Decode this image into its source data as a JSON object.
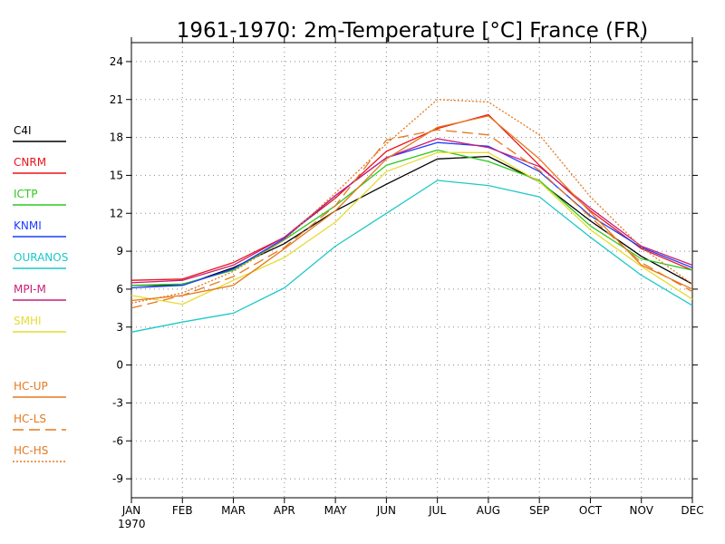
{
  "chart_data": {
    "type": "line",
    "title": "1961-1970: 2m-Temperature [°C] France (FR)",
    "xlabel": "",
    "ylabel": "",
    "categories": [
      "JAN",
      "FEB",
      "MAR",
      "APR",
      "MAY",
      "JUN",
      "JUL",
      "AUG",
      "SEP",
      "OCT",
      "NOV",
      "DEC"
    ],
    "year_label": "1970",
    "ylim": [
      -10.5,
      25.5
    ],
    "yticks": [
      -9,
      -6,
      -3,
      0,
      3,
      6,
      9,
      12,
      15,
      18,
      21,
      24
    ],
    "grid": true,
    "legend_position": "left",
    "series": [
      {
        "name": "C4I",
        "color": "#000000",
        "dash": "solid",
        "values": [
          6.3,
          6.3,
          7.7,
          9.6,
          12.2,
          14.3,
          16.3,
          16.5,
          14.5,
          11.4,
          8.6,
          6.4
        ]
      },
      {
        "name": "CNRM",
        "color": "#e8141c",
        "dash": "solid",
        "values": [
          6.7,
          6.8,
          8.1,
          10.1,
          13.2,
          16.9,
          18.7,
          19.8,
          15.8,
          12.2,
          9.2,
          7.5
        ]
      },
      {
        "name": "ICTP",
        "color": "#2ec81e",
        "dash": "solid",
        "values": [
          6.3,
          6.4,
          7.5,
          9.9,
          12.6,
          15.8,
          17.0,
          16.1,
          14.6,
          11.0,
          8.4,
          7.5
        ]
      },
      {
        "name": "KNMI",
        "color": "#1e3cff",
        "dash": "solid",
        "values": [
          6.1,
          6.3,
          7.6,
          10.0,
          13.4,
          16.4,
          17.6,
          17.3,
          15.3,
          11.8,
          9.3,
          7.7
        ]
      },
      {
        "name": "OURANOS",
        "color": "#1ec8c8",
        "dash": "solid",
        "values": [
          2.6,
          3.4,
          4.1,
          6.1,
          9.4,
          12.0,
          14.6,
          14.2,
          13.3,
          10.1,
          7.1,
          4.7
        ]
      },
      {
        "name": "MPI-M",
        "color": "#c81e78",
        "dash": "solid",
        "values": [
          6.5,
          6.7,
          7.9,
          10.1,
          13.4,
          16.4,
          17.9,
          17.2,
          15.7,
          12.4,
          9.4,
          7.9
        ]
      },
      {
        "name": "SMHI",
        "color": "#e6dc32",
        "dash": "solid",
        "values": [
          5.5,
          4.8,
          6.7,
          8.5,
          11.3,
          15.3,
          16.8,
          16.8,
          14.5,
          10.7,
          7.8,
          5.2
        ]
      },
      {
        "name": "HC-UP",
        "color": "#e6781e",
        "dash": "solid",
        "values": [
          5.1,
          5.5,
          6.3,
          9.2,
          12.2,
          16.3,
          18.8,
          19.7,
          16.3,
          12.1,
          7.9,
          6.0
        ]
      },
      {
        "name": "HC-LS",
        "color": "#e6781e",
        "dash": "dashed",
        "values": [
          4.5,
          5.5,
          7.0,
          9.3,
          12.6,
          17.8,
          18.6,
          18.2,
          15.4,
          11.7,
          8.1,
          5.8
        ]
      },
      {
        "name": "HC-HS",
        "color": "#e6781e",
        "dash": "dotted",
        "values": [
          4.9,
          5.7,
          7.4,
          9.9,
          13.6,
          17.5,
          21.0,
          20.8,
          18.2,
          13.3,
          9.3,
          6.4
        ]
      }
    ]
  }
}
